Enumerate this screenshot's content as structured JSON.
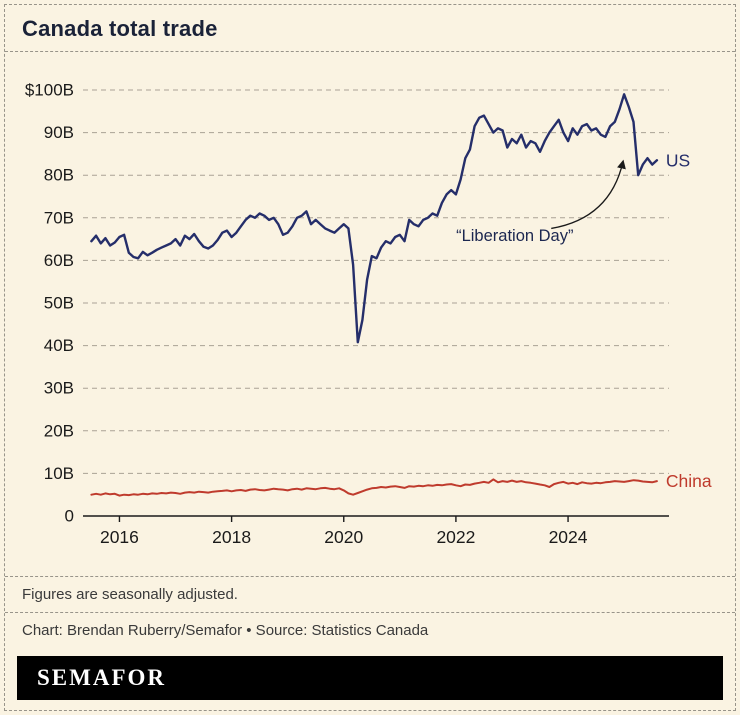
{
  "page": {
    "title": "Canada total trade",
    "note": "Figures are seasonally adjusted.",
    "credit": "Chart: Brendan Ruberry/Semafor • Source: Statistics Canada",
    "logo": "SEMAFOR"
  },
  "colors": {
    "background": "#faf3e2",
    "us_line": "#252e6a",
    "china_line": "#bf3b2d",
    "grid": "#a9a295",
    "axis": "#1a1a1a",
    "annotation": "#1c2750"
  },
  "chart_data": {
    "type": "line",
    "title": "Canada total trade",
    "x_unit": "decimal_year",
    "x_interval": "monthly",
    "x_start": 2015.5,
    "xlim": [
      2015.35,
      2025.8
    ],
    "ylim": [
      0,
      100
    ],
    "ylabel": "",
    "xlabel": "",
    "grid": "dashed-horizontal",
    "yticks": [
      {
        "value": 0,
        "label": "0"
      },
      {
        "value": 10,
        "label": "10B"
      },
      {
        "value": 20,
        "label": "20B"
      },
      {
        "value": 30,
        "label": "30B"
      },
      {
        "value": 40,
        "label": "40B"
      },
      {
        "value": 50,
        "label": "50B"
      },
      {
        "value": 60,
        "label": "60B"
      },
      {
        "value": 70,
        "label": "70B"
      },
      {
        "value": 80,
        "label": "80B"
      },
      {
        "value": 90,
        "label": "90B"
      },
      {
        "value": 100,
        "label": "$100B"
      }
    ],
    "xticks": [
      {
        "value": 2016,
        "label": "2016"
      },
      {
        "value": 2018,
        "label": "2018"
      },
      {
        "value": 2020,
        "label": "2020"
      },
      {
        "value": 2022,
        "label": "2022"
      },
      {
        "value": 2024,
        "label": "2024"
      }
    ],
    "series": [
      {
        "name": "US",
        "color": "#252e6a",
        "width": 2.4,
        "values": [
          64.5,
          65.8,
          64.0,
          65.2,
          63.5,
          64.2,
          65.5,
          66.0,
          61.8,
          60.8,
          60.5,
          62.0,
          61.2,
          61.8,
          62.5,
          63.0,
          63.5,
          64.0,
          65.0,
          63.5,
          65.8,
          65.0,
          66.2,
          64.5,
          63.2,
          62.8,
          63.5,
          64.8,
          66.5,
          67.0,
          65.5,
          66.5,
          68.0,
          69.5,
          70.5,
          70.0,
          71.0,
          70.5,
          69.5,
          70.0,
          68.5,
          66.0,
          66.5,
          68.0,
          70.0,
          70.5,
          71.5,
          68.5,
          69.5,
          68.5,
          67.5,
          67.0,
          66.5,
          67.5,
          68.5,
          67.5,
          59.0,
          40.8,
          46.0,
          55.5,
          61.0,
          60.5,
          63.0,
          64.5,
          64.0,
          65.5,
          66.0,
          64.5,
          69.5,
          68.5,
          68.0,
          69.5,
          70.0,
          71.0,
          70.5,
          73.5,
          75.5,
          76.5,
          75.5,
          79.0,
          84.0,
          86.0,
          91.5,
          93.5,
          94.0,
          92.0,
          90.0,
          91.0,
          90.5,
          86.5,
          88.5,
          87.5,
          89.5,
          86.5,
          88.0,
          87.5,
          85.5,
          88.0,
          90.0,
          91.5,
          93.0,
          90.0,
          88.0,
          91.0,
          89.5,
          91.5,
          92.0,
          90.5,
          91.0,
          89.5,
          89.0,
          91.5,
          92.5,
          95.5,
          99.0,
          96.0,
          92.5,
          80.0,
          82.5,
          84.0,
          82.5,
          83.5
        ]
      },
      {
        "name": "China",
        "color": "#bf3b2d",
        "width": 2.0,
        "values": [
          5.0,
          5.2,
          5.0,
          5.3,
          5.1,
          5.2,
          4.8,
          5.0,
          4.9,
          5.1,
          5.0,
          5.2,
          5.1,
          5.3,
          5.2,
          5.4,
          5.3,
          5.5,
          5.4,
          5.2,
          5.5,
          5.6,
          5.5,
          5.7,
          5.6,
          5.5,
          5.7,
          5.8,
          5.9,
          6.0,
          5.8,
          6.0,
          6.1,
          5.9,
          6.2,
          6.3,
          6.1,
          6.0,
          6.2,
          6.4,
          6.3,
          6.2,
          6.0,
          6.3,
          6.4,
          6.2,
          6.5,
          6.4,
          6.3,
          6.5,
          6.6,
          6.4,
          6.3,
          6.5,
          6.0,
          5.3,
          5.0,
          5.4,
          5.8,
          6.2,
          6.5,
          6.6,
          6.8,
          6.7,
          6.9,
          7.0,
          6.8,
          6.6,
          7.0,
          6.9,
          7.1,
          7.0,
          7.2,
          7.1,
          7.3,
          7.2,
          7.4,
          7.5,
          7.2,
          7.0,
          7.4,
          7.3,
          7.6,
          7.8,
          8.0,
          7.8,
          8.6,
          7.9,
          8.2,
          8.0,
          8.3,
          8.0,
          8.2,
          7.9,
          7.8,
          7.6,
          7.4,
          7.2,
          6.8,
          7.5,
          7.8,
          8.0,
          7.6,
          7.8,
          7.5,
          7.9,
          7.7,
          7.6,
          7.8,
          7.7,
          7.9,
          8.0,
          8.2,
          8.1,
          8.0,
          8.2,
          8.4,
          8.3,
          8.1,
          8.0,
          7.9,
          8.2
        ]
      }
    ],
    "annotation": {
      "text": "“Liberation Day”",
      "text_x": 2023.05,
      "text_y": 64.5,
      "arrow_from_x": 2023.7,
      "arrow_from_y": 67.5,
      "arrow_to_x": 2024.98,
      "arrow_to_y": 83.2
    }
  }
}
